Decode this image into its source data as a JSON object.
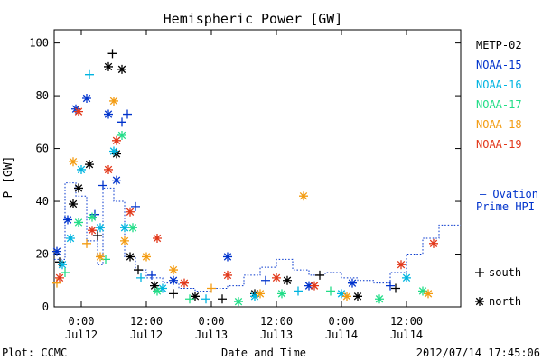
{
  "chart_data": {
    "type": "scatter",
    "title": "Hemispheric Power [GW]",
    "ylabel": "P [GW]",
    "xlabel": "Date and Time",
    "ylim": [
      0,
      105
    ],
    "xlim": [
      "2012-07-11T19:00",
      "2012-07-14T22:00"
    ],
    "y_ticks": [
      0,
      20,
      40,
      60,
      80,
      100
    ],
    "x_ticks": [
      {
        "t": "2012-07-12T00:00",
        "label_time": "0:00",
        "label_date": "Jul12"
      },
      {
        "t": "2012-07-12T12:00",
        "label_time": "12:00",
        "label_date": "Jul12"
      },
      {
        "t": "2012-07-13T00:00",
        "label_time": "0:00",
        "label_date": "Jul13"
      },
      {
        "t": "2012-07-13T12:00",
        "label_time": "12:00",
        "label_date": "Jul13"
      },
      {
        "t": "2012-07-14T00:00",
        "label_time": "0:00",
        "label_date": "Jul14"
      },
      {
        "t": "2012-07-14T12:00",
        "label_time": "12:00",
        "label_date": "Jul14"
      }
    ],
    "series": [
      {
        "name": "METP-02",
        "color": "#000000",
        "points": [
          {
            "t": "2012-07-11T20:00",
            "y": 17,
            "m": "+"
          },
          {
            "t": "2012-07-11T22:30",
            "y": 39,
            "m": "*"
          },
          {
            "t": "2012-07-11T23:30",
            "y": 45,
            "m": "*"
          },
          {
            "t": "2012-07-12T01:30",
            "y": 54,
            "m": "*"
          },
          {
            "t": "2012-07-12T03:00",
            "y": 27,
            "m": "+"
          },
          {
            "t": "2012-07-12T05:00",
            "y": 91,
            "m": "*"
          },
          {
            "t": "2012-07-12T05:45",
            "y": 96,
            "m": "+"
          },
          {
            "t": "2012-07-12T06:30",
            "y": 58,
            "m": "*"
          },
          {
            "t": "2012-07-12T07:30",
            "y": 90,
            "m": "*"
          },
          {
            "t": "2012-07-12T09:00",
            "y": 19,
            "m": "*"
          },
          {
            "t": "2012-07-12T10:30",
            "y": 14,
            "m": "+"
          },
          {
            "t": "2012-07-12T13:30",
            "y": 8,
            "m": "*"
          },
          {
            "t": "2012-07-12T17:00",
            "y": 5,
            "m": "+"
          },
          {
            "t": "2012-07-12T21:00",
            "y": 4,
            "m": "*"
          },
          {
            "t": "2012-07-13T02:00",
            "y": 3,
            "m": "+"
          },
          {
            "t": "2012-07-13T08:00",
            "y": 5,
            "m": "*"
          },
          {
            "t": "2012-07-13T14:00",
            "y": 10,
            "m": "*"
          },
          {
            "t": "2012-07-13T20:00",
            "y": 12,
            "m": "+"
          },
          {
            "t": "2012-07-14T03:00",
            "y": 4,
            "m": "*"
          },
          {
            "t": "2012-07-14T10:00",
            "y": 7,
            "m": "+"
          }
        ]
      },
      {
        "name": "NOAA-15",
        "color": "#0033cc",
        "points": [
          {
            "t": "2012-07-11T19:30",
            "y": 21,
            "m": "*"
          },
          {
            "t": "2012-07-11T21:30",
            "y": 33,
            "m": "*"
          },
          {
            "t": "2012-07-11T23:00",
            "y": 75,
            "m": "*"
          },
          {
            "t": "2012-07-12T01:00",
            "y": 79,
            "m": "*"
          },
          {
            "t": "2012-07-12T02:30",
            "y": 35,
            "m": "+"
          },
          {
            "t": "2012-07-12T04:00",
            "y": 46,
            "m": "+"
          },
          {
            "t": "2012-07-12T05:00",
            "y": 73,
            "m": "*"
          },
          {
            "t": "2012-07-12T06:30",
            "y": 48,
            "m": "*"
          },
          {
            "t": "2012-07-12T07:30",
            "y": 70,
            "m": "+"
          },
          {
            "t": "2012-07-12T08:30",
            "y": 73,
            "m": "+"
          },
          {
            "t": "2012-07-12T10:00",
            "y": 38,
            "m": "+"
          },
          {
            "t": "2012-07-12T13:00",
            "y": 12,
            "m": "+"
          },
          {
            "t": "2012-07-12T17:00",
            "y": 10,
            "m": "*"
          },
          {
            "t": "2012-07-13T03:00",
            "y": 19,
            "m": "*"
          },
          {
            "t": "2012-07-13T10:00",
            "y": 10,
            "m": "+"
          },
          {
            "t": "2012-07-13T18:00",
            "y": 8,
            "m": "*"
          },
          {
            "t": "2012-07-14T02:00",
            "y": 9,
            "m": "*"
          },
          {
            "t": "2012-07-14T09:00",
            "y": 8,
            "m": "+"
          }
        ]
      },
      {
        "name": "NOAA-16",
        "color": "#00b4e0",
        "points": [
          {
            "t": "2012-07-11T20:30",
            "y": 16,
            "m": "*"
          },
          {
            "t": "2012-07-11T22:00",
            "y": 26,
            "m": "*"
          },
          {
            "t": "2012-07-12T00:00",
            "y": 52,
            "m": "*"
          },
          {
            "t": "2012-07-12T01:30",
            "y": 88,
            "m": "+"
          },
          {
            "t": "2012-07-12T03:30",
            "y": 30,
            "m": "*"
          },
          {
            "t": "2012-07-12T06:00",
            "y": 59,
            "m": "*"
          },
          {
            "t": "2012-07-12T08:00",
            "y": 30,
            "m": "*"
          },
          {
            "t": "2012-07-12T11:00",
            "y": 11,
            "m": "+"
          },
          {
            "t": "2012-07-12T15:00",
            "y": 7,
            "m": "*"
          },
          {
            "t": "2012-07-12T23:00",
            "y": 3,
            "m": "+"
          },
          {
            "t": "2012-07-13T08:00",
            "y": 4,
            "m": "*"
          },
          {
            "t": "2012-07-13T16:00",
            "y": 6,
            "m": "+"
          },
          {
            "t": "2012-07-14T00:00",
            "y": 5,
            "m": "*"
          },
          {
            "t": "2012-07-14T12:00",
            "y": 11,
            "m": "*"
          }
        ]
      },
      {
        "name": "NOAA-17",
        "color": "#22dd88",
        "points": [
          {
            "t": "2012-07-11T21:00",
            "y": 13,
            "m": "+"
          },
          {
            "t": "2012-07-11T23:30",
            "y": 32,
            "m": "*"
          },
          {
            "t": "2012-07-12T02:00",
            "y": 34,
            "m": "*"
          },
          {
            "t": "2012-07-12T04:30",
            "y": 18,
            "m": "+"
          },
          {
            "t": "2012-07-12T07:30",
            "y": 65,
            "m": "*"
          },
          {
            "t": "2012-07-12T09:30",
            "y": 30,
            "m": "*"
          },
          {
            "t": "2012-07-12T14:00",
            "y": 6,
            "m": "*"
          },
          {
            "t": "2012-07-12T20:00",
            "y": 3,
            "m": "+"
          },
          {
            "t": "2012-07-13T05:00",
            "y": 2,
            "m": "*"
          },
          {
            "t": "2012-07-13T13:00",
            "y": 5,
            "m": "*"
          },
          {
            "t": "2012-07-13T22:00",
            "y": 6,
            "m": "+"
          },
          {
            "t": "2012-07-14T07:00",
            "y": 3,
            "m": "*"
          },
          {
            "t": "2012-07-14T15:00",
            "y": 6,
            "m": "*"
          }
        ]
      },
      {
        "name": "NOAA-18",
        "color": "#f39c12",
        "points": [
          {
            "t": "2012-07-11T19:30",
            "y": 9,
            "m": "+"
          },
          {
            "t": "2012-07-11T22:30",
            "y": 55,
            "m": "*"
          },
          {
            "t": "2012-07-12T01:00",
            "y": 24,
            "m": "+"
          },
          {
            "t": "2012-07-12T03:30",
            "y": 19,
            "m": "*"
          },
          {
            "t": "2012-07-12T06:00",
            "y": 78,
            "m": "*"
          },
          {
            "t": "2012-07-12T08:00",
            "y": 25,
            "m": "*"
          },
          {
            "t": "2012-07-12T12:00",
            "y": 19,
            "m": "*"
          },
          {
            "t": "2012-07-12T17:00",
            "y": 14,
            "m": "*"
          },
          {
            "t": "2012-07-13T00:00",
            "y": 7,
            "m": "+"
          },
          {
            "t": "2012-07-13T09:00",
            "y": 5,
            "m": "*"
          },
          {
            "t": "2012-07-13T17:00",
            "y": 42,
            "m": "*"
          },
          {
            "t": "2012-07-14T01:00",
            "y": 4,
            "m": "*"
          },
          {
            "t": "2012-07-14T16:00",
            "y": 5,
            "m": "*"
          }
        ]
      },
      {
        "name": "NOAA-19",
        "color": "#e2381a",
        "points": [
          {
            "t": "2012-07-11T20:00",
            "y": 11,
            "m": "*"
          },
          {
            "t": "2012-07-11T23:30",
            "y": 74,
            "m": "*"
          },
          {
            "t": "2012-07-12T02:00",
            "y": 29,
            "m": "*"
          },
          {
            "t": "2012-07-12T05:00",
            "y": 52,
            "m": "*"
          },
          {
            "t": "2012-07-12T06:30",
            "y": 63,
            "m": "*"
          },
          {
            "t": "2012-07-12T09:00",
            "y": 36,
            "m": "*"
          },
          {
            "t": "2012-07-12T14:00",
            "y": 26,
            "m": "*"
          },
          {
            "t": "2012-07-12T19:00",
            "y": 9,
            "m": "*"
          },
          {
            "t": "2012-07-13T03:00",
            "y": 12,
            "m": "*"
          },
          {
            "t": "2012-07-13T12:00",
            "y": 11,
            "m": "*"
          },
          {
            "t": "2012-07-13T19:00",
            "y": 8,
            "m": "*"
          },
          {
            "t": "2012-07-14T11:00",
            "y": 16,
            "m": "*"
          },
          {
            "t": "2012-07-14T17:00",
            "y": 24,
            "m": "*"
          }
        ]
      }
    ],
    "ovation": {
      "label_line1": "– Ovation",
      "label_line2": "Prime HPI",
      "color": "#0033cc",
      "steps": [
        {
          "t": "2012-07-11T19:00",
          "y": 18
        },
        {
          "t": "2012-07-11T21:00",
          "y": 47
        },
        {
          "t": "2012-07-11T23:00",
          "y": 42
        },
        {
          "t": "2012-07-12T01:00",
          "y": 25
        },
        {
          "t": "2012-07-12T03:00",
          "y": 16
        },
        {
          "t": "2012-07-12T04:00",
          "y": 45
        },
        {
          "t": "2012-07-12T06:00",
          "y": 40
        },
        {
          "t": "2012-07-12T08:00",
          "y": 19
        },
        {
          "t": "2012-07-12T10:00",
          "y": 14
        },
        {
          "t": "2012-07-12T12:00",
          "y": 11
        },
        {
          "t": "2012-07-12T15:00",
          "y": 9
        },
        {
          "t": "2012-07-12T18:00",
          "y": 7
        },
        {
          "t": "2012-07-12T21:00",
          "y": 6
        },
        {
          "t": "2012-07-13T00:00",
          "y": 7
        },
        {
          "t": "2012-07-13T03:00",
          "y": 8
        },
        {
          "t": "2012-07-13T06:00",
          "y": 12
        },
        {
          "t": "2012-07-13T09:00",
          "y": 15
        },
        {
          "t": "2012-07-13T12:00",
          "y": 18
        },
        {
          "t": "2012-07-13T15:00",
          "y": 14
        },
        {
          "t": "2012-07-13T18:00",
          "y": 12
        },
        {
          "t": "2012-07-13T21:00",
          "y": 13
        },
        {
          "t": "2012-07-14T00:00",
          "y": 11
        },
        {
          "t": "2012-07-14T03:00",
          "y": 10
        },
        {
          "t": "2012-07-14T06:00",
          "y": 9
        },
        {
          "t": "2012-07-14T09:00",
          "y": 13
        },
        {
          "t": "2012-07-14T12:00",
          "y": 20
        },
        {
          "t": "2012-07-14T15:00",
          "y": 26
        },
        {
          "t": "2012-07-14T18:00",
          "y": 31
        }
      ]
    },
    "marker_legend": [
      {
        "symbol": "+",
        "label": "south"
      },
      {
        "symbol": "*",
        "label": "north"
      }
    ]
  },
  "footer": {
    "plot_source": "Plot: CCMC",
    "timestamp": "2012/07/14 17:45:06"
  }
}
